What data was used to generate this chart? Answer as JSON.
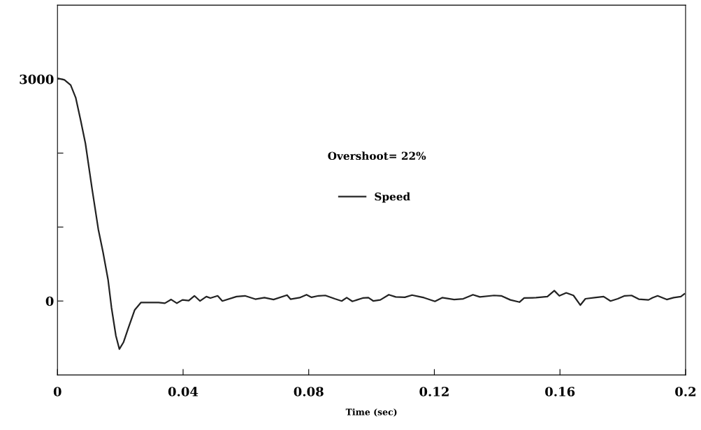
{
  "chart_data": {
    "type": "line",
    "xlabel": "Time (sec)",
    "annotations": [
      "Overshoot= 22%"
    ],
    "xlim": [
      0,
      0.2
    ],
    "xticks": [
      0,
      0.04,
      0.08,
      0.12,
      0.16,
      0.2
    ],
    "ylim": [
      -1000,
      4000
    ],
    "yticks": [
      0,
      {
        "value": 1000,
        "label": null
      },
      {
        "value": 2000,
        "label": null
      },
      3000
    ],
    "grid": false,
    "legend": "center",
    "marker": "none",
    "line_style": "solid",
    "series": [
      {
        "name": "Speed",
        "color": "#222222",
        "x": [
          0.0002,
          0.0022,
          0.0042,
          0.0058,
          0.0074,
          0.0089,
          0.011,
          0.013,
          0.0145,
          0.0161,
          0.0172,
          0.0186,
          0.0197,
          0.021,
          0.0226,
          0.0246,
          0.0266,
          0.0322,
          0.0342,
          0.0362,
          0.038,
          0.0398,
          0.0418,
          0.0436,
          0.0454,
          0.0474,
          0.0487,
          0.051,
          0.0525,
          0.057,
          0.0597,
          0.063,
          0.0659,
          0.0688,
          0.0731,
          0.0742,
          0.0771,
          0.0793,
          0.0809,
          0.0831,
          0.0853,
          0.0883,
          0.0905,
          0.0921,
          0.0939,
          0.0972,
          0.099,
          0.1006,
          0.1028,
          0.1055,
          0.1077,
          0.1106,
          0.1129,
          0.1151,
          0.1167,
          0.1202,
          0.1225,
          0.1263,
          0.1292,
          0.1323,
          0.1345,
          0.139,
          0.1413,
          0.1442,
          0.1471,
          0.1486,
          0.1524,
          0.156,
          0.1582,
          0.1598,
          0.162,
          0.1643,
          0.1665,
          0.1681,
          0.171,
          0.1739,
          0.1761,
          0.1784,
          0.1806,
          0.1828,
          0.1851,
          0.1882,
          0.1895,
          0.1911,
          0.194,
          0.1962,
          0.1985,
          0.1996
        ],
        "values": [
          3010,
          2990,
          2920,
          2750,
          2440,
          2130,
          1520,
          970,
          660,
          290,
          -90,
          -470,
          -650,
          -560,
          -360,
          -120,
          -20,
          -20,
          -30,
          20,
          -30,
          15,
          5,
          70,
          0,
          60,
          40,
          70,
          0,
          60,
          70,
          25,
          45,
          20,
          80,
          25,
          45,
          85,
          50,
          70,
          75,
          30,
          0,
          45,
          -5,
          40,
          45,
          0,
          15,
          85,
          55,
          50,
          80,
          60,
          45,
          -5,
          45,
          20,
          30,
          85,
          55,
          75,
          70,
          15,
          -15,
          40,
          45,
          60,
          140,
          70,
          110,
          75,
          -55,
          30,
          45,
          60,
          0,
          30,
          70,
          75,
          25,
          15,
          45,
          70,
          20,
          45,
          60,
          95
        ]
      }
    ]
  }
}
